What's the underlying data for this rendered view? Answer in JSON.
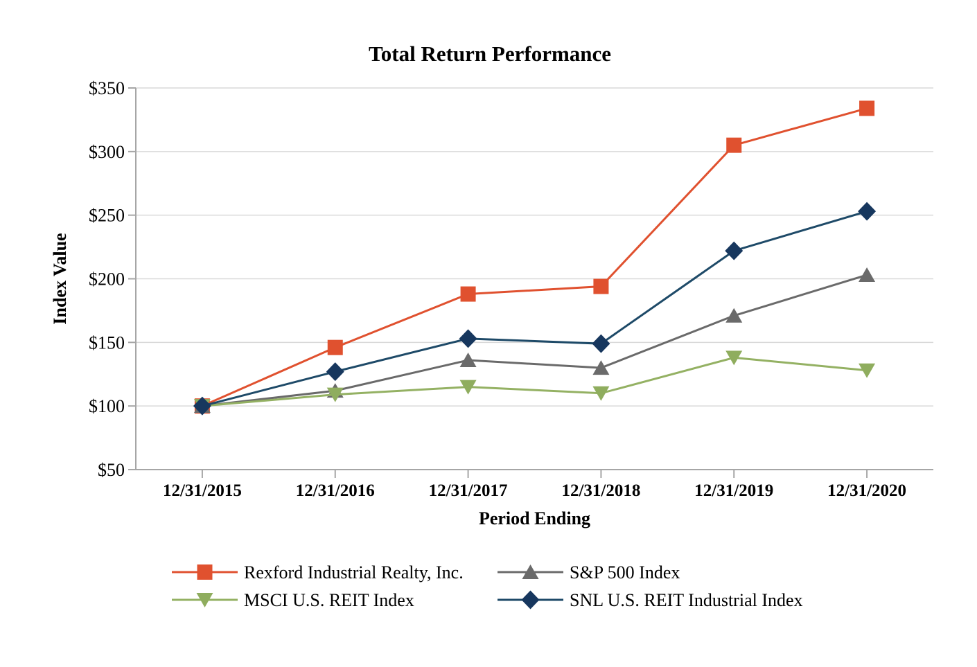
{
  "figure": {
    "title": "Total Return Performance"
  },
  "chart_data": {
    "type": "line",
    "title": "Total Return Performance",
    "xlabel": "Period Ending",
    "ylabel": "Index Value",
    "categories": [
      "12/31/2015",
      "12/31/2016",
      "12/31/2017",
      "12/31/2018",
      "12/31/2019",
      "12/31/2020"
    ],
    "series": [
      {
        "name": "Rexford Industrial Realty, Inc.",
        "marker": "square",
        "color": "#E0512F",
        "line_color": "#E0512F",
        "values": [
          100,
          146,
          188,
          194,
          305,
          334
        ]
      },
      {
        "name": "S&P 500 Index",
        "marker": "triangle-up",
        "color": "#6A6A6A",
        "line_color": "#6A6A6A",
        "values": [
          100,
          112,
          136,
          130,
          171,
          203
        ]
      },
      {
        "name": "MSCI U.S. REIT Index",
        "marker": "triangle-down",
        "color": "#8FAD5E",
        "line_color": "#94B163",
        "values": [
          100,
          109,
          115,
          110,
          138,
          128
        ]
      },
      {
        "name": "SNL U.S. REIT Industrial Index",
        "marker": "diamond",
        "color": "#17375E",
        "line_color": "#1E4A68",
        "values": [
          100,
          127,
          153,
          149,
          222,
          253
        ]
      }
    ],
    "ylim": [
      50,
      350
    ],
    "y_tick_step": 50,
    "y_tick_labels": [
      "$50",
      "$100",
      "$150",
      "$200",
      "$250",
      "$300",
      "$350"
    ],
    "grid": "horizontal",
    "legend_position": "bottom",
    "legend_rows": [
      [
        0,
        1
      ],
      [
        2,
        3
      ]
    ],
    "gridline_color": "#D9D9D9",
    "axis_color": "#A6A6A6",
    "text_color": "#000000",
    "background": "#FFFFFF"
  }
}
